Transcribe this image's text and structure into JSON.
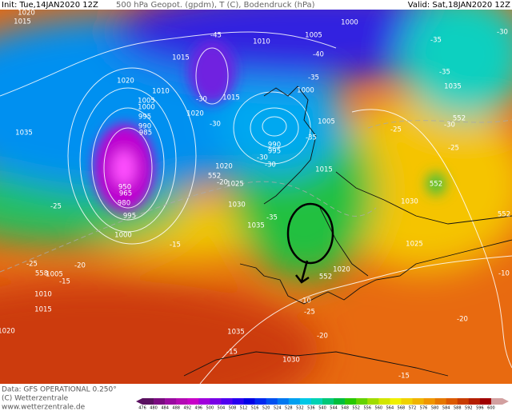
{
  "header": {
    "init": "Init: Tue,14JAN2020 12Z",
    "title": "500 hPa Geopot. (gpdm), T (C), Bodendruck (hPa)",
    "valid": "Valid: Sat,18JAN2020 12Z"
  },
  "map": {
    "labels": [
      "1020",
      "1015",
      "1000",
      "1005",
      "1010",
      "-45",
      "-40",
      "-35",
      "-30",
      "1015",
      "1020",
      "1010",
      "1005",
      "1000",
      "995",
      "990",
      "985",
      "1015",
      "1020",
      "1000",
      "-35",
      "-30",
      "-30",
      "-35",
      "1035",
      "1035",
      "990",
      "995",
      "-30",
      "1005",
      "-25",
      "-30",
      "552",
      "-25",
      "-35",
      "1015",
      "1020",
      "1025",
      "552",
      "-20",
      "-30",
      "950",
      "965",
      "980",
      "-25",
      "995",
      "1030",
      "1035",
      "-35",
      "1030",
      "552",
      "552",
      "1025",
      "1000",
      "-15",
      "-25",
      "-20",
      "558",
      "1005",
      "-15",
      "552",
      "1020",
      "-10",
      "-25",
      "1010",
      "1015",
      "-20",
      "1035",
      "-20",
      "-15",
      "1030",
      "-15",
      "1020",
      "-10"
    ]
  },
  "footer": {
    "data": "Data: GFS OPERATIONAL 0.250°",
    "copyright": "(C) Wetterzentrale",
    "url": "www.wetterzentrale.de"
  },
  "colorbar": {
    "values": [
      476,
      480,
      484,
      488,
      492,
      496,
      500,
      504,
      508,
      512,
      516,
      520,
      524,
      528,
      532,
      536,
      540,
      544,
      548,
      552,
      556,
      560,
      564,
      568,
      572,
      576,
      580,
      584,
      588,
      592,
      596,
      600
    ],
    "colors": [
      "#5a1060",
      "#7a0a80",
      "#9a0aa0",
      "#b40ab4",
      "#c800c8",
      "#a000dc",
      "#7800e6",
      "#5000f0",
      "#2800f0",
      "#0000e6",
      "#0028f0",
      "#0050f0",
      "#0078f0",
      "#00a0f0",
      "#00c8e6",
      "#00d2b4",
      "#00c878",
      "#00be3c",
      "#28c800",
      "#64d200",
      "#a0dc00",
      "#d2e600",
      "#f0f000",
      "#f0d200",
      "#f0b400",
      "#f09600",
      "#e67800",
      "#dc5a00",
      "#c83c00",
      "#b41e00",
      "#a00000",
      "#d2a0a0"
    ]
  }
}
